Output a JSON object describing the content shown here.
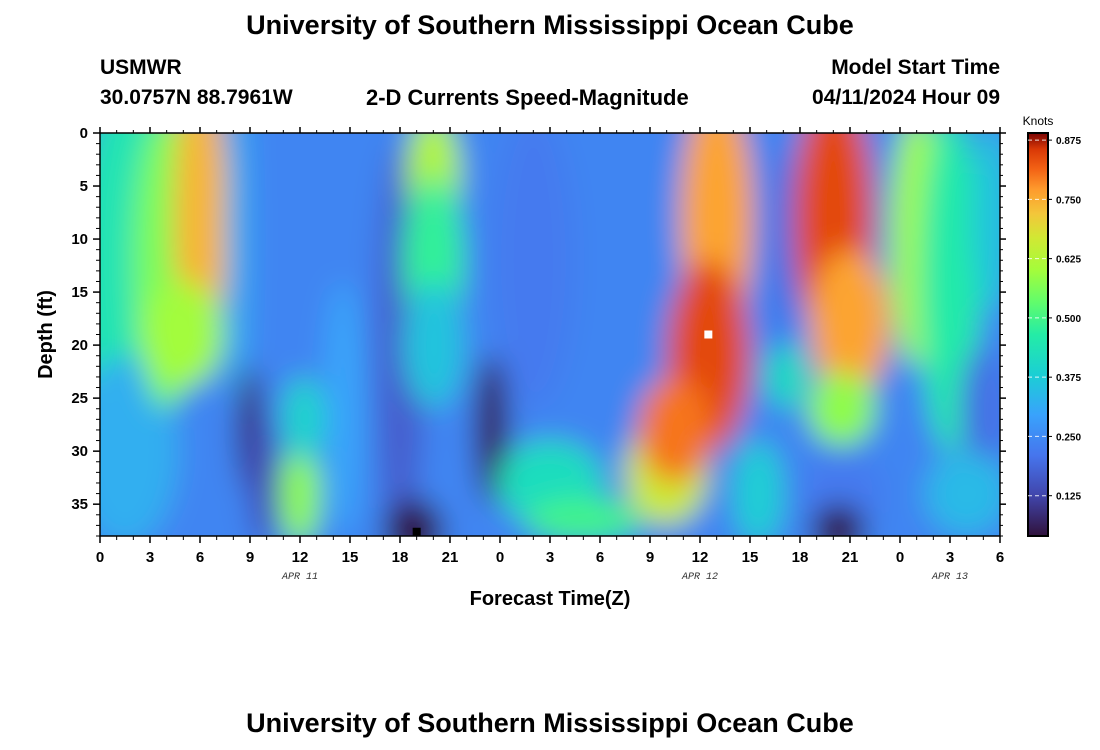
{
  "header": {
    "title": "University of Southern Mississippi Ocean Cube",
    "station": "USMWR",
    "coords": "30.0757N  88.7961W",
    "subtitle": "2-D Currents Speed-Magnitude",
    "model_start_label": "Model Start Time",
    "model_start_value": "04/11/2024 Hour 09",
    "footer_title": "University of Southern Mississippi Ocean Cube"
  },
  "chart_data": {
    "type": "heatmap",
    "title": "2-D Currents Speed-Magnitude",
    "xlabel": "Forecast Time(Z)",
    "ylabel": "Depth (ft)",
    "x_tick_labels": [
      "0",
      "3",
      "6",
      "9",
      "12",
      "15",
      "18",
      "21",
      "0",
      "3",
      "6",
      "9",
      "12",
      "15",
      "18",
      "21",
      "0",
      "3",
      "6"
    ],
    "x_hours_range": [
      0,
      54
    ],
    "date_labels": [
      {
        "label": "APR 11",
        "hour": 12
      },
      {
        "label": "APR 12",
        "hour": 36
      },
      {
        "label": "APR 13",
        "hour": 51
      }
    ],
    "y_ticks": [
      0,
      5,
      10,
      15,
      20,
      25,
      30,
      35
    ],
    "y_range": [
      0,
      38
    ],
    "colorbar": {
      "unit_label": "Knots",
      "ticks": [
        "0.875",
        "0.750",
        "0.625",
        "0.500",
        "0.375",
        "0.250",
        "0.125"
      ],
      "tick_values": [
        0.875,
        0.75,
        0.625,
        0.5,
        0.375,
        0.25,
        0.125
      ],
      "range": [
        0.04,
        0.89
      ]
    },
    "markers": [
      {
        "hour": 36.5,
        "depth": 19,
        "color": "#ffffff"
      },
      {
        "hour": 19,
        "depth": 37.6,
        "color": "#000000"
      }
    ],
    "grid": false
  }
}
